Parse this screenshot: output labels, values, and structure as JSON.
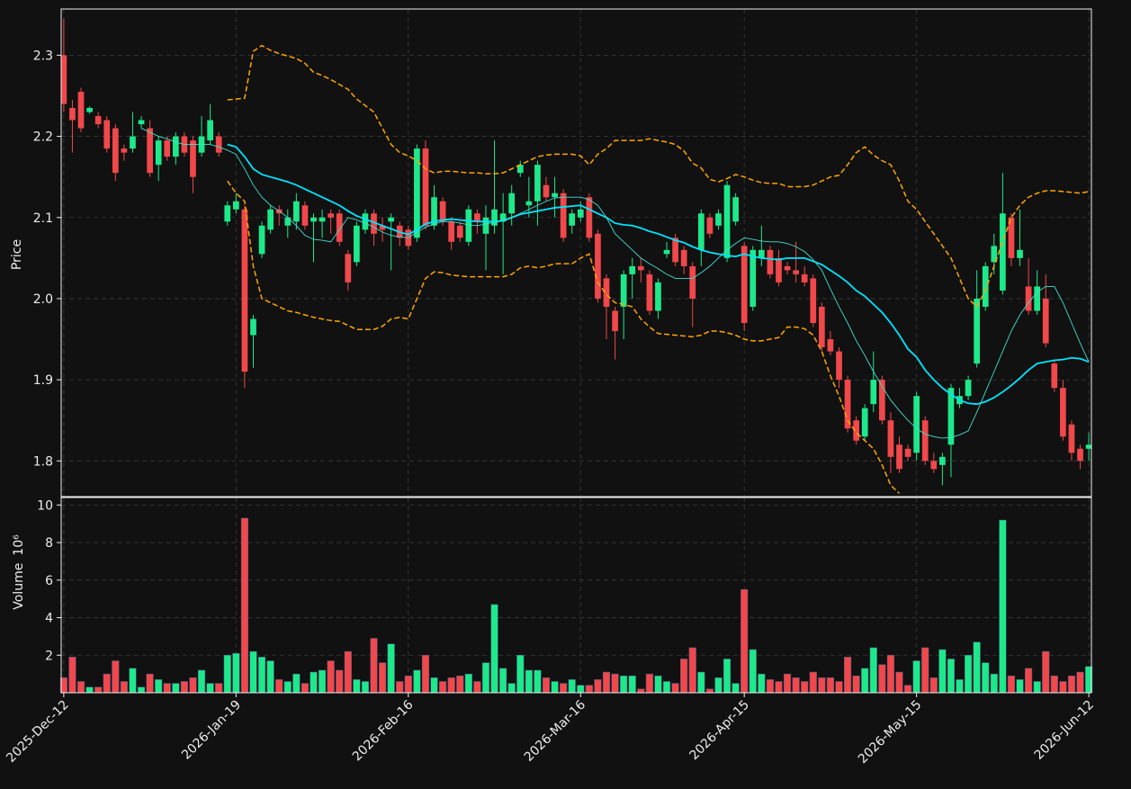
{
  "chart_data": {
    "type": "candlestick",
    "categories": [
      "2025-Dec-12",
      null,
      null,
      null,
      null,
      null,
      null,
      null,
      null,
      null,
      null,
      null,
      null,
      null,
      null,
      null,
      null,
      null,
      null,
      null,
      "2026-Jan-19",
      null,
      null,
      null,
      null,
      null,
      null,
      null,
      null,
      null,
      null,
      null,
      null,
      null,
      null,
      null,
      null,
      null,
      null,
      null,
      "2026-Feb-16",
      null,
      null,
      null,
      null,
      null,
      null,
      null,
      null,
      null,
      null,
      null,
      null,
      null,
      null,
      null,
      null,
      null,
      null,
      null,
      "2026-Mar-16",
      null,
      null,
      null,
      null,
      null,
      null,
      null,
      null,
      null,
      null,
      null,
      null,
      null,
      null,
      null,
      null,
      null,
      null,
      "2026-Apr-15",
      null,
      null,
      null,
      null,
      null,
      null,
      null,
      null,
      null,
      null,
      null,
      null,
      null,
      null,
      null,
      null,
      null,
      null,
      null,
      "2026-May-15",
      null,
      null,
      null,
      null,
      null,
      null,
      null,
      null,
      null,
      null,
      null,
      null,
      null,
      null,
      null,
      null,
      null,
      null,
      null,
      "2026-Jun-12"
    ],
    "open": [
      2.3,
      2.235,
      2.255,
      2.23,
      2.225,
      2.22,
      2.21,
      2.185,
      2.185,
      2.215,
      2.21,
      2.165,
      2.195,
      2.175,
      2.2,
      2.195,
      2.18,
      2.195,
      2.2,
      2.095,
      2.11,
      2.11,
      1.955,
      2.055,
      2.085,
      2.11,
      2.09,
      2.095,
      2.115,
      2.095,
      2.095,
      2.105,
      2.105,
      2.055,
      2.045,
      2.085,
      2.105,
      2.09,
      2.095,
      2.09,
      2.085,
      2.075,
      2.185,
      2.09,
      2.12,
      2.095,
      2.09,
      2.07,
      2.105,
      2.08,
      2.09,
      2.095,
      2.105,
      2.155,
      2.115,
      2.12,
      2.14,
      2.125,
      2.13,
      2.09,
      2.1,
      2.125,
      2.08,
      2.025,
      1.985,
      1.99,
      2.03,
      2.04,
      2.03,
      1.985,
      2.055,
      2.075,
      2.06,
      2.04,
      2.06,
      2.1,
      2.09,
      2.05,
      2.095,
      2.065,
      1.99,
      2.05,
      2.06,
      2.05,
      2.04,
      2.035,
      2.03,
      2.025,
      1.99,
      1.95,
      1.935,
      1.9,
      1.85,
      1.83,
      1.87,
      1.9,
      1.85,
      1.82,
      1.815,
      1.81,
      1.85,
      1.8,
      1.795,
      1.82,
      1.87,
      1.88,
      1.92,
      1.99,
      2.045,
      2.01,
      2.1,
      2.05,
      2.015,
      1.985,
      2.0,
      1.92,
      1.89,
      1.845,
      1.815,
      1.815
    ],
    "high": [
      2.345,
      2.245,
      2.26,
      2.237,
      2.23,
      2.225,
      2.215,
      2.19,
      2.23,
      2.225,
      2.22,
      2.2,
      2.2,
      2.205,
      2.205,
      2.2,
      2.225,
      2.24,
      2.205,
      2.12,
      2.13,
      2.115,
      1.98,
      2.095,
      2.115,
      2.115,
      2.11,
      2.13,
      2.12,
      2.105,
      2.11,
      2.11,
      2.11,
      2.06,
      2.095,
      2.11,
      2.11,
      2.1,
      2.105,
      2.095,
      2.09,
      2.19,
      2.195,
      2.14,
      2.125,
      2.1,
      2.095,
      2.115,
      2.11,
      2.115,
      2.195,
      2.13,
      2.14,
      2.17,
      2.15,
      2.17,
      2.15,
      2.15,
      2.135,
      2.11,
      2.12,
      2.13,
      2.085,
      2.03,
      1.99,
      2.035,
      2.05,
      2.05,
      2.035,
      2.025,
      2.07,
      2.08,
      2.065,
      2.045,
      2.11,
      2.105,
      2.11,
      2.145,
      2.13,
      2.07,
      2.065,
      2.09,
      2.065,
      2.06,
      2.045,
      2.07,
      2.04,
      2.03,
      1.995,
      1.96,
      1.94,
      1.905,
      1.855,
      1.87,
      1.935,
      1.905,
      1.86,
      1.83,
      1.82,
      1.885,
      1.855,
      1.81,
      1.81,
      1.895,
      1.89,
      1.905,
      2.035,
      2.045,
      2.08,
      2.155,
      2.105,
      2.11,
      2.05,
      2.035,
      2.03,
      1.925,
      1.9,
      1.85,
      1.82,
      1.835
    ],
    "low": [
      2.23,
      2.18,
      2.205,
      2.228,
      2.21,
      2.18,
      2.145,
      2.17,
      2.18,
      2.21,
      2.15,
      2.145,
      2.17,
      2.165,
      2.175,
      2.13,
      2.175,
      2.19,
      2.175,
      2.09,
      2.105,
      1.89,
      1.915,
      2.05,
      2.08,
      2.09,
      2.075,
      2.085,
      2.085,
      2.045,
      2.075,
      2.08,
      2.065,
      2.01,
      2.04,
      2.08,
      2.065,
      2.07,
      2.035,
      2.065,
      2.06,
      2.07,
      2.085,
      2.085,
      2.09,
      2.06,
      2.07,
      2.065,
      2.08,
      2.035,
      2.08,
      2.03,
      2.09,
      2.15,
      2.1,
      2.09,
      2.12,
      2.1,
      2.07,
      2.08,
      2.095,
      2.07,
      1.995,
      1.95,
      1.925,
      1.95,
      2.0,
      2.02,
      1.98,
      1.975,
      2.05,
      2.04,
      2.03,
      1.965,
      2.04,
      2.075,
      2.085,
      2.045,
      2.09,
      1.96,
      1.985,
      2.04,
      2.025,
      2.015,
      2.03,
      2.02,
      2.015,
      1.965,
      1.935,
      1.93,
      1.89,
      1.835,
      1.82,
      1.825,
      1.86,
      1.845,
      1.785,
      1.785,
      1.8,
      1.8,
      1.795,
      1.785,
      1.77,
      1.78,
      1.865,
      1.875,
      1.915,
      1.985,
      2.03,
      2.005,
      2.04,
      2.04,
      1.98,
      1.98,
      1.94,
      1.885,
      1.825,
      1.8,
      1.79,
      1.8
    ],
    "close": [
      2.24,
      2.22,
      2.21,
      2.235,
      2.215,
      2.185,
      2.155,
      2.18,
      2.2,
      2.22,
      2.155,
      2.195,
      2.175,
      2.2,
      2.18,
      2.15,
      2.2,
      2.22,
      2.18,
      2.115,
      2.12,
      1.91,
      1.975,
      2.09,
      2.11,
      2.105,
      2.1,
      2.12,
      2.09,
      2.1,
      2.1,
      2.1,
      2.07,
      2.02,
      2.09,
      2.105,
      2.08,
      2.085,
      2.1,
      2.075,
      2.065,
      2.185,
      2.09,
      2.125,
      2.095,
      2.07,
      2.075,
      2.11,
      2.095,
      2.1,
      2.11,
      2.105,
      2.13,
      2.165,
      2.12,
      2.165,
      2.125,
      2.13,
      2.075,
      2.105,
      2.11,
      2.075,
      2.0,
      1.99,
      1.96,
      2.03,
      2.04,
      2.035,
      1.985,
      2.02,
      2.06,
      2.045,
      2.04,
      2.0,
      2.105,
      2.08,
      2.105,
      2.14,
      2.125,
      1.97,
      2.06,
      2.06,
      2.03,
      2.02,
      2.035,
      2.03,
      2.02,
      1.97,
      1.94,
      1.935,
      1.9,
      1.84,
      1.825,
      1.865,
      1.9,
      1.85,
      1.805,
      1.79,
      1.805,
      1.88,
      1.8,
      1.79,
      1.805,
      1.89,
      1.88,
      1.9,
      2.0,
      2.04,
      2.065,
      2.105,
      2.05,
      2.06,
      1.985,
      2.015,
      1.945,
      1.89,
      1.83,
      1.81,
      1.8,
      1.82
    ],
    "up_color": "#1de98b",
    "down_color": "#f0484b",
    "ylabel": "Price",
    "ylim": [
      1.756,
      2.357
    ],
    "yticks": [
      1.8,
      1.9,
      {
        "value": 2,
        "label": "2.0"
      },
      2.1,
      2.2,
      2.3
    ],
    "grid": true,
    "lines": [
      {
        "color": "#00e5ff",
        "width": 1.8,
        "dashed": false,
        "values": [
          null,
          null,
          null,
          null,
          null,
          null,
          null,
          null,
          null,
          null,
          null,
          null,
          null,
          null,
          null,
          null,
          null,
          null,
          null,
          2.19,
          2.187,
          2.175,
          2.16,
          2.153,
          2.15,
          2.147,
          2.144,
          2.14,
          2.135,
          2.13,
          2.125,
          2.12,
          2.115,
          2.108,
          2.102,
          2.098,
          2.094,
          2.09,
          2.086,
          2.082,
          2.079,
          2.085,
          2.092,
          2.095,
          2.097,
          2.098,
          2.097,
          2.096,
          2.095,
          2.095,
          2.095,
          2.096,
          2.1,
          2.104,
          2.106,
          2.108,
          2.11,
          2.112,
          2.113,
          2.114,
          2.115,
          2.11,
          2.105,
          2.1,
          2.093,
          2.091,
          2.09,
          2.087,
          2.083,
          2.08,
          2.076,
          2.072,
          2.069,
          2.064,
          2.06,
          2.057,
          2.055,
          2.053,
          2.052,
          2.055,
          2.052,
          2.05,
          2.049,
          2.048,
          2.05,
          2.05,
          2.05,
          2.046,
          2.042,
          2.035,
          2.028,
          2.02,
          2.01,
          2.003,
          1.993,
          1.983,
          1.97,
          1.955,
          1.938,
          1.928,
          1.912,
          1.9,
          1.89,
          1.882,
          1.875,
          1.871,
          1.87,
          1.873,
          1.878,
          1.885,
          1.893,
          1.902,
          1.912,
          1.92,
          1.922,
          1.924,
          1.925,
          1.927,
          1.926,
          1.922
        ]
      },
      {
        "color": "#40e0d0",
        "width": 0.9,
        "dashed": false,
        "values": [
          null,
          null,
          null,
          null,
          null,
          null,
          null,
          null,
          null,
          2.21,
          2.205,
          2.2,
          2.197,
          2.193,
          2.19,
          2.19,
          2.19,
          2.19,
          2.187,
          2.183,
          2.178,
          2.16,
          2.14,
          2.125,
          2.115,
          2.108,
          2.1,
          2.09,
          2.078,
          2.073,
          2.072,
          2.07,
          2.085,
          2.1,
          2.097,
          2.093,
          2.088,
          2.082,
          2.078,
          2.076,
          2.075,
          2.082,
          2.088,
          2.092,
          2.095,
          2.095,
          2.093,
          2.091,
          2.09,
          2.092,
          2.094,
          2.096,
          2.1,
          2.105,
          2.11,
          2.115,
          2.12,
          2.124,
          2.125,
          2.125,
          2.125,
          2.122,
          2.115,
          2.1,
          2.08,
          2.07,
          2.06,
          2.05,
          2.043,
          2.037,
          2.03,
          2.025,
          2.025,
          2.025,
          2.032,
          2.04,
          2.05,
          2.06,
          2.068,
          2.075,
          2.073,
          2.071,
          2.07,
          2.07,
          2.068,
          2.064,
          2.058,
          2.048,
          2.035,
          2.012,
          1.99,
          1.97,
          1.948,
          1.93,
          1.91,
          1.892,
          1.875,
          1.862,
          1.85,
          1.84,
          1.833,
          1.83,
          1.828,
          1.829,
          1.832,
          1.837,
          1.86,
          1.885,
          1.91,
          1.935,
          1.96,
          1.98,
          1.995,
          2.008,
          2.015,
          2.015,
          1.995,
          1.97,
          1.945,
          1.922
        ]
      },
      {
        "color": "#ffa500",
        "width": 1.5,
        "dashed": true,
        "values": [
          null,
          null,
          null,
          null,
          null,
          null,
          null,
          null,
          null,
          null,
          null,
          null,
          null,
          null,
          null,
          null,
          null,
          null,
          null,
          2.245,
          2.246,
          2.247,
          2.305,
          2.312,
          2.306,
          2.302,
          2.299,
          2.296,
          2.29,
          2.279,
          2.275,
          2.27,
          2.264,
          2.258,
          2.246,
          2.238,
          2.23,
          2.21,
          2.19,
          2.18,
          2.176,
          2.17,
          2.16,
          2.155,
          2.157,
          2.157,
          2.156,
          2.155,
          2.155,
          2.154,
          2.154,
          2.155,
          2.16,
          2.165,
          2.17,
          2.175,
          2.177,
          2.178,
          2.178,
          2.178,
          2.176,
          2.165,
          2.178,
          2.185,
          2.195,
          2.195,
          2.195,
          2.195,
          2.197,
          2.195,
          2.193,
          2.19,
          2.182,
          2.167,
          2.161,
          2.147,
          2.144,
          2.148,
          2.153,
          2.15,
          2.146,
          2.143,
          2.142,
          2.142,
          2.138,
          2.138,
          2.138,
          2.14,
          2.145,
          2.15,
          2.152,
          2.165,
          2.18,
          2.187,
          2.177,
          2.17,
          2.165,
          2.145,
          2.12,
          2.11,
          2.095,
          2.08,
          2.065,
          2.05,
          2.025,
          2.0,
          1.99,
          2.01,
          2.04,
          2.07,
          2.1,
          2.115,
          2.125,
          2.13,
          2.133,
          2.133,
          2.132,
          2.131,
          2.13,
          2.132
        ]
      },
      {
        "color": "#ffa500",
        "width": 1.5,
        "dashed": true,
        "values": [
          null,
          null,
          null,
          null,
          null,
          null,
          null,
          null,
          null,
          null,
          null,
          null,
          null,
          null,
          null,
          null,
          null,
          null,
          null,
          2.145,
          2.13,
          2.12,
          2.04,
          2.0,
          1.995,
          1.99,
          1.985,
          1.983,
          1.98,
          1.977,
          1.975,
          1.973,
          1.972,
          1.967,
          1.962,
          1.962,
          1.962,
          1.966,
          1.975,
          1.977,
          1.975,
          2.0,
          2.025,
          2.033,
          2.032,
          2.029,
          2.028,
          2.027,
          2.027,
          2.027,
          2.027,
          2.027,
          2.03,
          2.038,
          2.04,
          2.038,
          2.04,
          2.043,
          2.043,
          2.043,
          2.05,
          2.055,
          2.02,
          2.005,
          1.995,
          1.993,
          1.99,
          1.975,
          1.965,
          1.957,
          1.956,
          1.955,
          1.954,
          1.953,
          1.955,
          1.96,
          1.96,
          1.958,
          1.955,
          1.95,
          1.948,
          1.948,
          1.95,
          1.952,
          1.965,
          1.965,
          1.963,
          1.955,
          1.935,
          1.905,
          1.88,
          1.85,
          1.835,
          1.825,
          1.815,
          1.795,
          1.77,
          1.76,
          null,
          null,
          null,
          null,
          null,
          null,
          null,
          null,
          null,
          null,
          null,
          null,
          null,
          null,
          null,
          null,
          null,
          null,
          null,
          null,
          null,
          null
        ]
      }
    ],
    "volume": {
      "type": "bar",
      "ylabel": "Volume",
      "yscale": "10⁶",
      "values": [
        0.8,
        1.9,
        0.6,
        0.3,
        0.3,
        1.0,
        1.7,
        0.6,
        1.3,
        0.3,
        1.0,
        0.7,
        0.5,
        0.5,
        0.6,
        0.8,
        1.2,
        0.5,
        0.5,
        2.0,
        2.1,
        9.3,
        2.2,
        1.9,
        1.7,
        0.7,
        0.6,
        1.0,
        0.5,
        1.1,
        1.2,
        1.7,
        1.2,
        2.2,
        0.7,
        0.6,
        2.9,
        1.6,
        2.6,
        0.6,
        0.9,
        1.2,
        2.0,
        0.8,
        0.6,
        0.8,
        0.9,
        1.0,
        0.6,
        1.6,
        4.7,
        1.3,
        0.5,
        2.0,
        1.2,
        1.2,
        0.8,
        0.6,
        0.5,
        0.7,
        0.4,
        0.4,
        0.7,
        1.1,
        1.0,
        0.9,
        0.9,
        0.2,
        1.0,
        0.9,
        0.6,
        0.5,
        1.8,
        2.4,
        1.1,
        0.2,
        0.8,
        1.8,
        0.5,
        5.5,
        2.3,
        1.0,
        0.7,
        0.6,
        1.0,
        0.8,
        0.6,
        1.1,
        0.8,
        0.8,
        0.6,
        1.9,
        0.9,
        1.3,
        2.4,
        1.5,
        2.0,
        1.1,
        0.4,
        1.7,
        2.4,
        0.8,
        2.3,
        1.8,
        0.7,
        2.0,
        2.7,
        1.6,
        1.0,
        9.2,
        0.9,
        0.7,
        1.3,
        0.6,
        2.2,
        0.9,
        0.6,
        0.9,
        1.1,
        1.4
      ],
      "ylim": [
        0,
        10.4
      ],
      "yticks": [
        2,
        4,
        6,
        8,
        10
      ]
    }
  }
}
